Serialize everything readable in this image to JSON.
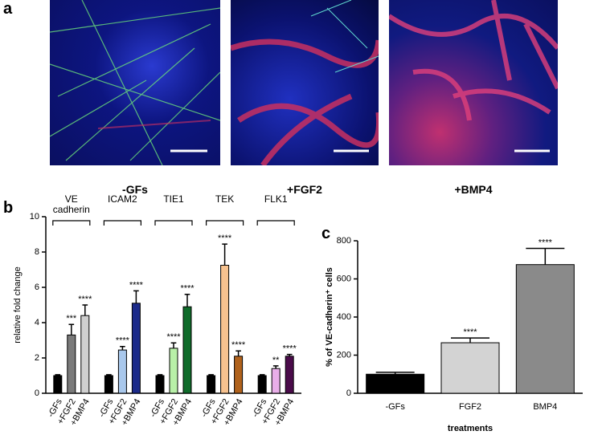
{
  "panel_labels": [
    "a",
    "b",
    "c"
  ],
  "image_captions": [
    "-GFs",
    "+FGF2",
    "+BMP4"
  ],
  "chart_data": [
    {
      "type": "bar",
      "ylabel": "relative fold change",
      "ylim": [
        0,
        10
      ],
      "yticks": [
        0,
        2,
        4,
        6,
        8,
        10
      ],
      "groups": [
        {
          "name": "VE cadherin",
          "categories": [
            "-GFs",
            "+FGF2",
            "+BMP4"
          ],
          "values": [
            1,
            3.3,
            4.4
          ],
          "errors": [
            0.05,
            0.6,
            0.6
          ],
          "colors": [
            "#000000",
            "#7a7a7a",
            "#cfcfcf"
          ],
          "annotations": [
            null,
            "***",
            "****"
          ]
        },
        {
          "name": "ICAM2",
          "categories": [
            "-GFs",
            "+FGF2",
            "+BMP4"
          ],
          "values": [
            1,
            2.45,
            5.1
          ],
          "errors": [
            0.05,
            0.2,
            0.7
          ],
          "colors": [
            "#000000",
            "#a9c8ec",
            "#1b2a8a"
          ],
          "annotations": [
            null,
            "****",
            "****"
          ]
        },
        {
          "name": "TIE1",
          "categories": [
            "-GFs",
            "+FGF2",
            "+BMP4"
          ],
          "values": [
            1,
            2.55,
            4.9
          ],
          "errors": [
            0.05,
            0.3,
            0.7
          ],
          "colors": [
            "#000000",
            "#b8f0a8",
            "#0f6b2a"
          ],
          "annotations": [
            null,
            "****",
            "****"
          ]
        },
        {
          "name": "TEK",
          "categories": [
            "-GFs",
            "+FGF2",
            "+BMP4"
          ],
          "values": [
            1,
            7.25,
            2.1
          ],
          "errors": [
            0.05,
            1.2,
            0.3
          ],
          "colors": [
            "#000000",
            "#f7c28f",
            "#b0621c"
          ],
          "annotations": [
            null,
            "****",
            "****"
          ]
        },
        {
          "name": "FLK1",
          "categories": [
            "-GFs",
            "+FGF2",
            "+BMP4"
          ],
          "values": [
            1,
            1.4,
            2.1
          ],
          "errors": [
            0.05,
            0.15,
            0.1
          ],
          "colors": [
            "#000000",
            "#e8aee8",
            "#4a0b4a"
          ],
          "annotations": [
            null,
            "**",
            "****"
          ]
        }
      ]
    },
    {
      "type": "bar",
      "ylabel": "% of VE-cadherin⁺ cells",
      "xlabel": "treatments",
      "ylim": [
        0,
        800
      ],
      "yticks": [
        0,
        200,
        400,
        600,
        800
      ],
      "categories": [
        "-GFs",
        "FGF2",
        "BMP4"
      ],
      "values": [
        100,
        265,
        675
      ],
      "errors": [
        10,
        25,
        85
      ],
      "colors": [
        "#000000",
        "#d3d3d3",
        "#8a8a8a"
      ],
      "annotations": [
        null,
        "****",
        "****"
      ]
    }
  ]
}
